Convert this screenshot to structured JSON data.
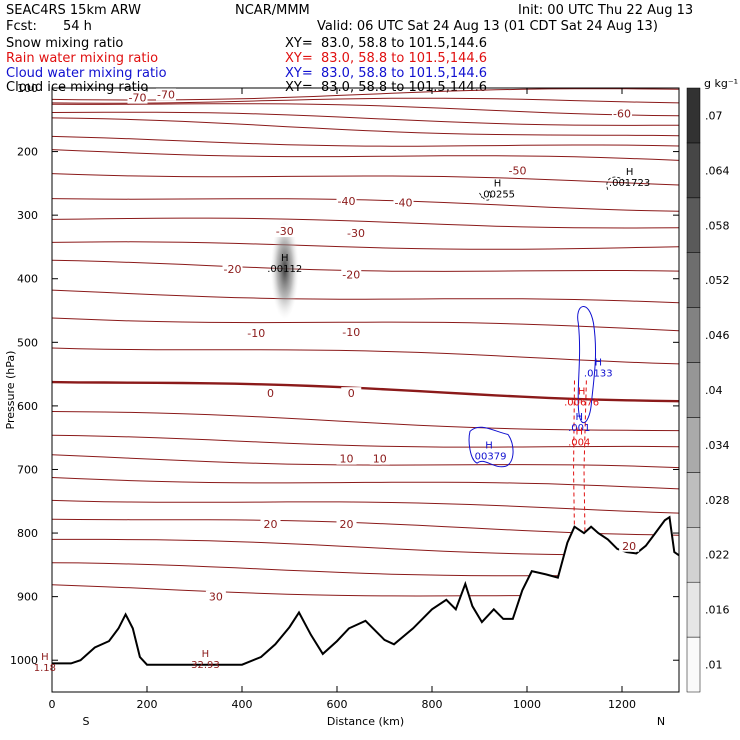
{
  "header": {
    "model": "SEAC4RS 15km ARW",
    "org": "NCAR/MMM",
    "init": "Init: 00 UTC Thu 22 Aug 13",
    "fcst_label": "Fcst:",
    "fcst_value": "54 h",
    "valid": "Valid: 06 UTC Sat 24 Aug 13 (01 CDT Sat 24 Aug 13)"
  },
  "fields": [
    {
      "name": "Snow mixing ratio",
      "xy": "XY=  83.0, 58.8 to 101.5,144.6",
      "color": "#000000"
    },
    {
      "name": "Rain water mixing ratio",
      "xy": "XY=  83.0, 58.8 to 101.5,144.6",
      "color": "#e01010"
    },
    {
      "name": "Cloud water mixing ratio",
      "xy": "XY=  83.0, 58.8 to 101.5,144.6",
      "color": "#1010d0"
    },
    {
      "name": "Cloud ice mixing ratio",
      "xy": "XY=  83.0, 58.8 to 101.5,144.6",
      "color": "#000000"
    }
  ],
  "chart_data": {
    "type": "contour cross-section",
    "xlabel": "Distance (km)",
    "ylabel": "Pressure (hPa)",
    "xlim": [
      0,
      1320
    ],
    "ylim": [
      1050,
      100
    ],
    "x_ticks": [
      0,
      200,
      400,
      600,
      800,
      1000,
      1200
    ],
    "y_ticks": [
      100,
      200,
      300,
      400,
      500,
      600,
      700,
      800,
      900,
      1000
    ],
    "y_tick_labels": [
      "100",
      "200",
      "300",
      "400",
      "500",
      "600",
      "700",
      "800",
      "900",
      "1000"
    ],
    "x_end_labels": {
      "left": "S",
      "right": "N"
    },
    "colorbar": {
      "unit": "g kg⁻¹",
      "levels": [
        0.01,
        0.016,
        0.022,
        0.028,
        0.034,
        0.04,
        0.046,
        0.052,
        0.058,
        0.064,
        0.07
      ],
      "labels": [
        ".01",
        ".016",
        ".022",
        ".028",
        ".034",
        ".04",
        ".046",
        ".052",
        ".058",
        ".064",
        ".07"
      ]
    },
    "temperature_contour_labels": [
      {
        "text": "-70",
        "x": 180,
        "p": 115
      },
      {
        "text": "-70",
        "x": 240,
        "p": 110
      },
      {
        "text": "-60",
        "x": 1200,
        "p": 140
      },
      {
        "text": "-50",
        "x": 980,
        "p": 230
      },
      {
        "text": "-40",
        "x": 620,
        "p": 278
      },
      {
        "text": "-40",
        "x": 740,
        "p": 280
      },
      {
        "text": "-30",
        "x": 490,
        "p": 325
      },
      {
        "text": "-30",
        "x": 640,
        "p": 328
      },
      {
        "text": "-20",
        "x": 380,
        "p": 385
      },
      {
        "text": "-20",
        "x": 630,
        "p": 393
      },
      {
        "text": "-10",
        "x": 430,
        "p": 485
      },
      {
        "text": "-10",
        "x": 630,
        "p": 484
      },
      {
        "text": "0",
        "x": 460,
        "p": 580
      },
      {
        "text": "0",
        "x": 630,
        "p": 580
      },
      {
        "text": "10",
        "x": 620,
        "p": 683
      },
      {
        "text": "10",
        "x": 690,
        "p": 683
      },
      {
        "text": "20",
        "x": 460,
        "p": 786
      },
      {
        "text": "20",
        "x": 620,
        "p": 786
      },
      {
        "text": "20",
        "x": 1215,
        "p": 820
      },
      {
        "text": "30",
        "x": 345,
        "p": 900
      }
    ],
    "highs": [
      {
        "value": ".00112",
        "x": 490,
        "p": 375,
        "color": "#000000"
      },
      {
        "value": ".00255",
        "x": 938,
        "p": 258,
        "color": "#000000"
      },
      {
        "value": ".001723",
        "x": 1216,
        "p": 240,
        "color": "#000000"
      },
      {
        "value": ".0133",
        "x": 1150,
        "p": 540,
        "color": "#1010d0"
      },
      {
        "value": ".00676",
        "x": 1115,
        "p": 585,
        "color": "#e01010"
      },
      {
        "value": ".001",
        "x": 1110,
        "p": 625,
        "color": "#1010d0"
      },
      {
        "value": ".004",
        "x": 1110,
        "p": 648,
        "color": "#e01010"
      },
      {
        "value": ".00379",
        "x": 920,
        "p": 670,
        "color": "#1010d0"
      },
      {
        "value": "32.93",
        "x": 323,
        "p": 998,
        "color": "#8b1a1a"
      },
      {
        "value": "1.18",
        "x": -15,
        "p": 1003,
        "color": "#8b1a1a"
      }
    ],
    "terrain": [
      [
        0,
        1005
      ],
      [
        40,
        1005
      ],
      [
        60,
        1000
      ],
      [
        90,
        980
      ],
      [
        120,
        970
      ],
      [
        140,
        950
      ],
      [
        155,
        928
      ],
      [
        170,
        950
      ],
      [
        185,
        995
      ],
      [
        200,
        1007
      ],
      [
        300,
        1007
      ],
      [
        400,
        1007
      ],
      [
        440,
        995
      ],
      [
        470,
        975
      ],
      [
        500,
        948
      ],
      [
        520,
        925
      ],
      [
        545,
        960
      ],
      [
        570,
        990
      ],
      [
        600,
        970
      ],
      [
        625,
        950
      ],
      [
        660,
        938
      ],
      [
        700,
        968
      ],
      [
        720,
        975
      ],
      [
        760,
        950
      ],
      [
        800,
        920
      ],
      [
        830,
        905
      ],
      [
        850,
        920
      ],
      [
        870,
        880
      ],
      [
        885,
        915
      ],
      [
        905,
        940
      ],
      [
        930,
        920
      ],
      [
        950,
        935
      ],
      [
        970,
        935
      ],
      [
        990,
        890
      ],
      [
        1010,
        860
      ],
      [
        1040,
        865
      ],
      [
        1065,
        870
      ],
      [
        1085,
        815
      ],
      [
        1100,
        790
      ],
      [
        1120,
        800
      ],
      [
        1135,
        790
      ],
      [
        1150,
        800
      ],
      [
        1170,
        810
      ],
      [
        1190,
        825
      ],
      [
        1210,
        830
      ],
      [
        1230,
        832
      ],
      [
        1250,
        820
      ],
      [
        1270,
        800
      ],
      [
        1290,
        780
      ],
      [
        1300,
        775
      ],
      [
        1310,
        830
      ],
      [
        1320,
        835
      ]
    ]
  }
}
